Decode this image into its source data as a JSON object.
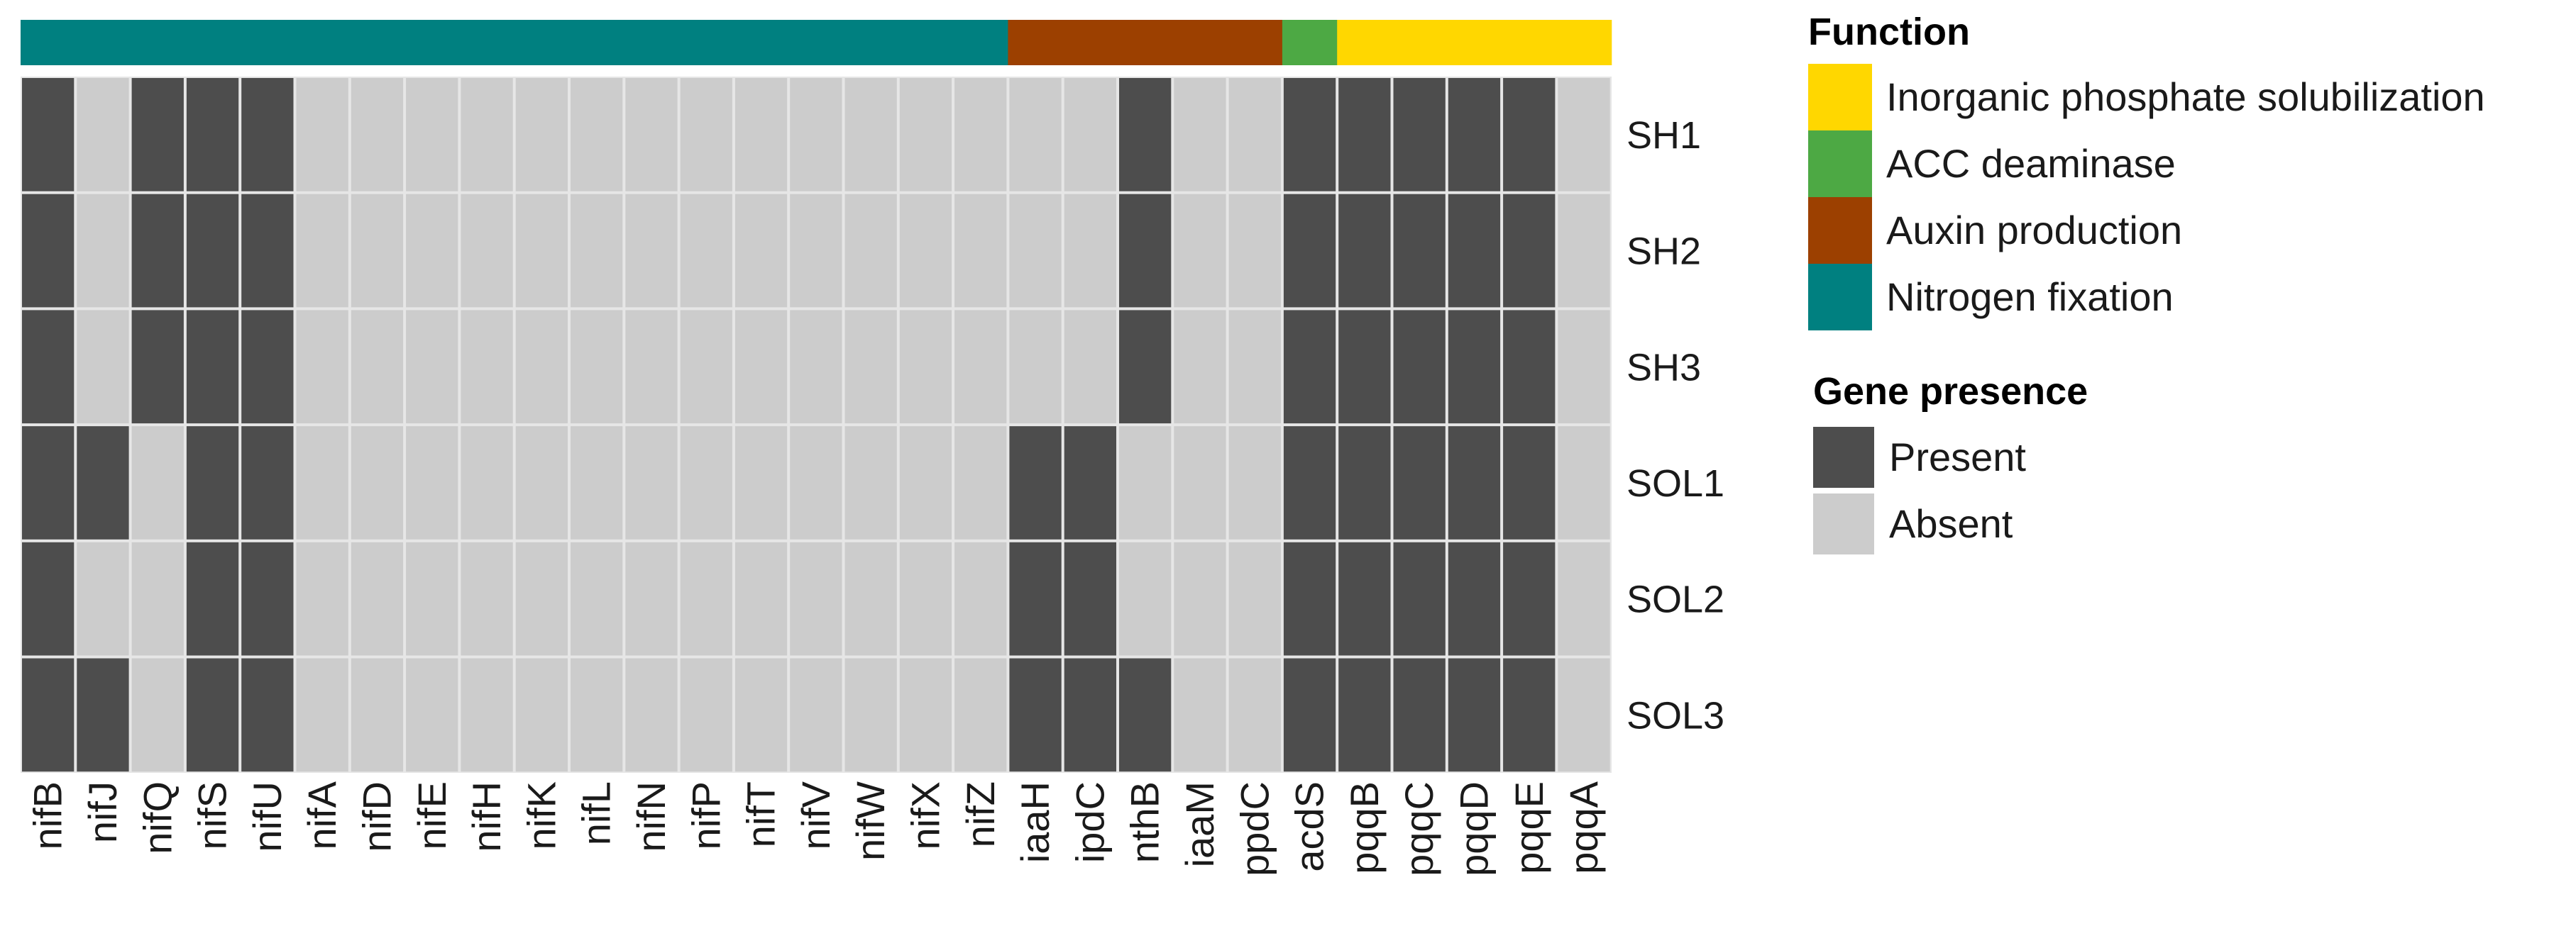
{
  "chart_data": {
    "type": "heatmap",
    "title": "",
    "genes": [
      "nifB",
      "nifJ",
      "nifQ",
      "nifS",
      "nifU",
      "nifA",
      "nifD",
      "nifE",
      "nifH",
      "nifK",
      "nifL",
      "nifN",
      "nifP",
      "nifT",
      "nifV",
      "nifW",
      "nifX",
      "nifZ",
      "iaaH",
      "ipdC",
      "nthB",
      "iaaM",
      "ppdC",
      "acdS",
      "pqqB",
      "pqqC",
      "pqqD",
      "pqqE",
      "pqqA"
    ],
    "gene_function": [
      "Nitrogen fixation",
      "Nitrogen fixation",
      "Nitrogen fixation",
      "Nitrogen fixation",
      "Nitrogen fixation",
      "Nitrogen fixation",
      "Nitrogen fixation",
      "Nitrogen fixation",
      "Nitrogen fixation",
      "Nitrogen fixation",
      "Nitrogen fixation",
      "Nitrogen fixation",
      "Nitrogen fixation",
      "Nitrogen fixation",
      "Nitrogen fixation",
      "Nitrogen fixation",
      "Nitrogen fixation",
      "Nitrogen fixation",
      "Auxin production",
      "Auxin production",
      "Auxin production",
      "Auxin production",
      "Auxin production",
      "ACC deaminase",
      "Inorganic phosphate solubilization",
      "Inorganic phosphate solubilization",
      "Inorganic phosphate solubilization",
      "Inorganic phosphate solubilization",
      "Inorganic phosphate solubilization"
    ],
    "samples": [
      "SH1",
      "SH2",
      "SH3",
      "SOL1",
      "SOL2",
      "SOL3"
    ],
    "matrix": [
      [
        1,
        0,
        1,
        1,
        1,
        0,
        0,
        0,
        0,
        0,
        0,
        0,
        0,
        0,
        0,
        0,
        0,
        0,
        0,
        0,
        1,
        0,
        0,
        1,
        1,
        1,
        1,
        1,
        0
      ],
      [
        1,
        0,
        1,
        1,
        1,
        0,
        0,
        0,
        0,
        0,
        0,
        0,
        0,
        0,
        0,
        0,
        0,
        0,
        0,
        0,
        1,
        0,
        0,
        1,
        1,
        1,
        1,
        1,
        0
      ],
      [
        1,
        0,
        1,
        1,
        1,
        0,
        0,
        0,
        0,
        0,
        0,
        0,
        0,
        0,
        0,
        0,
        0,
        0,
        0,
        0,
        1,
        0,
        0,
        1,
        1,
        1,
        1,
        1,
        0
      ],
      [
        1,
        1,
        0,
        1,
        1,
        0,
        0,
        0,
        0,
        0,
        0,
        0,
        0,
        0,
        0,
        0,
        0,
        0,
        1,
        1,
        0,
        0,
        0,
        1,
        1,
        1,
        1,
        1,
        0
      ],
      [
        1,
        0,
        0,
        1,
        1,
        0,
        0,
        0,
        0,
        0,
        0,
        0,
        0,
        0,
        0,
        0,
        0,
        0,
        1,
        1,
        0,
        0,
        0,
        1,
        1,
        1,
        1,
        1,
        0
      ],
      [
        1,
        1,
        0,
        1,
        1,
        0,
        0,
        0,
        0,
        0,
        0,
        0,
        0,
        0,
        0,
        0,
        0,
        0,
        1,
        1,
        1,
        0,
        0,
        1,
        1,
        1,
        1,
        1,
        0
      ]
    ],
    "legend_function": {
      "title": "Function",
      "items": [
        {
          "label": "Inorganic phosphate solubilization",
          "color": "#ffd700"
        },
        {
          "label": "ACC deaminase",
          "color": "#4da944"
        },
        {
          "label": "Auxin production",
          "color": "#9c4000"
        },
        {
          "label": "Nitrogen fixation",
          "color": "#008080"
        }
      ]
    },
    "legend_presence": {
      "title": "Gene presence",
      "items": [
        {
          "label": "Present",
          "value": 1,
          "color": "#4d4d4d"
        },
        {
          "label": "Absent",
          "value": 0,
          "color": "#cccccc"
        }
      ]
    },
    "grid": true,
    "legend_position": "right"
  }
}
